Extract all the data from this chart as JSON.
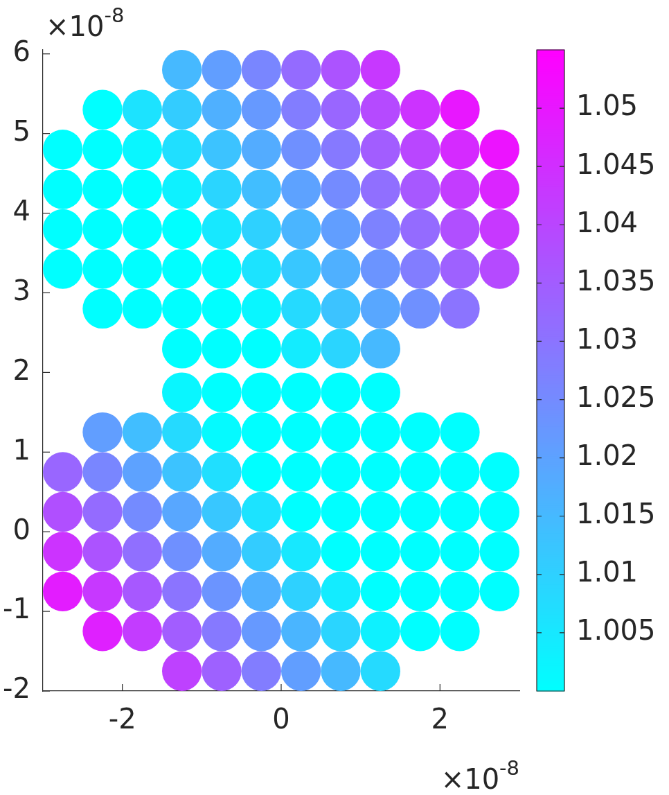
{
  "chart_data": {
    "type": "scatter",
    "marker": "circle",
    "x": [
      -1.25,
      -0.75,
      -0.25,
      0.25,
      0.75,
      1.25,
      -2.25,
      -1.75,
      -1.25,
      -0.75,
      -0.25,
      0.25,
      0.75,
      1.25,
      1.75,
      2.25,
      -2.75,
      -2.25,
      -1.75,
      -1.25,
      -0.75,
      -0.25,
      0.25,
      0.75,
      1.25,
      1.75,
      2.25,
      2.75,
      -2.75,
      -2.25,
      -1.75,
      -1.25,
      -0.75,
      -0.25,
      0.25,
      0.75,
      1.25,
      1.75,
      2.25,
      2.75,
      -2.75,
      -2.25,
      -1.75,
      -1.25,
      -0.75,
      -0.25,
      0.25,
      0.75,
      1.25,
      1.75,
      2.25,
      2.75,
      -2.75,
      -2.25,
      -1.75,
      -1.25,
      -0.75,
      -0.25,
      0.25,
      0.75,
      1.25,
      1.75,
      2.25,
      2.75,
      -2.25,
      -1.75,
      -1.25,
      -0.75,
      -0.25,
      0.25,
      0.75,
      1.25,
      1.75,
      2.25,
      -1.25,
      -0.75,
      -0.25,
      0.25,
      0.75,
      1.25,
      -1.25,
      -0.75,
      -0.25,
      0.25,
      0.75,
      1.25,
      -2.25,
      -1.75,
      -1.25,
      -0.75,
      -0.25,
      0.25,
      0.75,
      1.25,
      1.75,
      2.25,
      -2.75,
      -2.25,
      -1.75,
      -1.25,
      -0.75,
      -0.25,
      0.25,
      0.75,
      1.25,
      1.75,
      2.25,
      2.75,
      -2.75,
      -2.25,
      -1.75,
      -1.25,
      -0.75,
      -0.25,
      0.25,
      0.75,
      1.25,
      1.75,
      2.25,
      2.75,
      -2.75,
      -2.25,
      -1.75,
      -1.25,
      -0.75,
      -0.25,
      0.25,
      0.75,
      1.25,
      1.75,
      2.25,
      2.75,
      -2.75,
      -2.25,
      -1.75,
      -1.25,
      -0.75,
      -0.25,
      0.25,
      0.75,
      1.25,
      1.75,
      2.25,
      2.75,
      -2.25,
      -1.75,
      -1.25,
      -0.75,
      -0.25,
      0.25,
      0.75,
      1.25,
      1.75,
      2.25,
      -1.25,
      -0.75,
      -0.25,
      0.25,
      0.75,
      1.25
    ],
    "values": [
      5.8,
      5.8,
      5.8,
      5.8,
      5.8,
      5.8,
      5.3,
      5.3,
      5.3,
      5.3,
      5.3,
      5.3,
      5.3,
      5.3,
      5.3,
      5.3,
      4.8,
      4.8,
      4.8,
      4.8,
      4.8,
      4.8,
      4.8,
      4.8,
      4.8,
      4.8,
      4.8,
      4.8,
      4.3,
      4.3,
      4.3,
      4.3,
      4.3,
      4.3,
      4.3,
      4.3,
      4.3,
      4.3,
      4.3,
      4.3,
      3.8,
      3.8,
      3.8,
      3.8,
      3.8,
      3.8,
      3.8,
      3.8,
      3.8,
      3.8,
      3.8,
      3.8,
      3.3,
      3.3,
      3.3,
      3.3,
      3.3,
      3.3,
      3.3,
      3.3,
      3.3,
      3.3,
      3.3,
      3.3,
      2.8,
      2.8,
      2.8,
      2.8,
      2.8,
      2.8,
      2.8,
      2.8,
      2.8,
      2.8,
      2.3,
      2.3,
      2.3,
      2.3,
      2.3,
      2.3,
      1.75,
      1.75,
      1.75,
      1.75,
      1.75,
      1.75,
      1.25,
      1.25,
      1.25,
      1.25,
      1.25,
      1.25,
      1.25,
      1.25,
      1.25,
      1.25,
      0.75,
      0.75,
      0.75,
      0.75,
      0.75,
      0.75,
      0.75,
      0.75,
      0.75,
      0.75,
      0.75,
      0.75,
      0.25,
      0.25,
      0.25,
      0.25,
      0.25,
      0.25,
      0.25,
      0.25,
      0.25,
      0.25,
      0.25,
      0.25,
      -0.25,
      -0.25,
      -0.25,
      -0.25,
      -0.25,
      -0.25,
      -0.25,
      -0.25,
      -0.25,
      -0.25,
      -0.25,
      -0.25,
      -0.75,
      -0.75,
      -0.75,
      -0.75,
      -0.75,
      -0.75,
      -0.75,
      -0.75,
      -0.75,
      -0.75,
      -0.75,
      -0.75,
      -1.25,
      -1.25,
      -1.25,
      -1.25,
      -1.25,
      -1.25,
      -1.25,
      -1.25,
      -1.25,
      -1.25,
      -1.75,
      -1.75,
      -1.75,
      -1.75,
      -1.75,
      -1.75
    ],
    "cvalues": [
      1.015,
      1.021,
      1.026,
      1.032,
      1.037,
      1.043,
      1.0,
      1.006,
      1.011,
      1.017,
      1.022,
      1.028,
      1.033,
      1.039,
      1.044,
      1.05,
      1.0,
      1.0,
      1.002,
      1.007,
      1.013,
      1.018,
      1.024,
      1.029,
      1.035,
      1.04,
      1.046,
      1.051,
      1.0,
      1.0,
      1.0,
      1.003,
      1.009,
      1.014,
      1.02,
      1.025,
      1.031,
      1.036,
      1.042,
      1.047,
      1.0,
      1.0,
      1.0,
      1.0,
      1.005,
      1.01,
      1.016,
      1.021,
      1.027,
      1.032,
      1.038,
      1.043,
      1.0,
      1.0,
      1.0,
      1.0,
      1.001,
      1.006,
      1.012,
      1.017,
      1.023,
      1.028,
      1.034,
      1.039,
      1.0,
      1.0,
      1.0,
      1.0,
      1.002,
      1.008,
      1.013,
      1.019,
      1.024,
      1.03,
      1.0,
      1.0,
      1.0,
      1.004,
      1.009,
      1.015,
      1.002,
      1.0,
      1.0,
      1.0,
      1.0,
      1.0,
      1.021,
      1.014,
      1.008,
      1.001,
      1.0,
      1.0,
      1.0,
      1.0,
      1.0,
      1.0,
      1.033,
      1.026,
      1.02,
      1.013,
      1.007,
      1.0,
      1.0,
      1.0,
      1.0,
      1.0,
      1.0,
      1.0,
      1.038,
      1.032,
      1.025,
      1.019,
      1.012,
      1.006,
      1.0,
      1.0,
      1.0,
      1.0,
      1.0,
      1.0,
      1.044,
      1.037,
      1.031,
      1.024,
      1.018,
      1.011,
      1.005,
      1.0,
      1.0,
      1.0,
      1.0,
      1.0,
      1.049,
      1.043,
      1.036,
      1.03,
      1.023,
      1.017,
      1.01,
      1.004,
      1.0,
      1.0,
      1.0,
      1.0,
      1.048,
      1.042,
      1.035,
      1.029,
      1.022,
      1.016,
      1.009,
      1.003,
      1.0,
      1.0,
      1.041,
      1.034,
      1.028,
      1.021,
      1.015,
      1.008
    ],
    "clim": [
      1.0,
      1.055
    ],
    "cticks": [
      1.005,
      1.01,
      1.015,
      1.02,
      1.025,
      1.03,
      1.035,
      1.04,
      1.045,
      1.05
    ],
    "xlim": [
      -3,
      3
    ],
    "xticks": [
      -2,
      0,
      2
    ],
    "ylim": [
      -2,
      6.05
    ],
    "yticks": [
      -2,
      -1,
      0,
      1,
      2,
      3,
      4,
      5,
      6
    ],
    "annotations": [
      "×10$^{-8}$",
      "×10$^{-8}$"
    ]
  }
}
